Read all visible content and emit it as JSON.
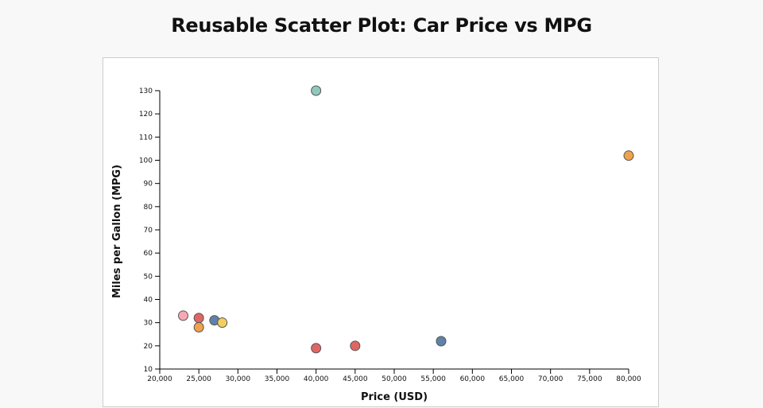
{
  "page": {
    "title": "Reusable Scatter Plot: Car Price vs MPG"
  },
  "chart_data": {
    "type": "scatter",
    "title": "Reusable Scatter Plot: Car Price vs MPG",
    "xlabel": "Price (USD)",
    "ylabel": "Miles per Gallon (MPG)",
    "xlim": [
      20000,
      80000
    ],
    "ylim": [
      10,
      130
    ],
    "x_ticks": [
      20000,
      25000,
      30000,
      35000,
      40000,
      45000,
      50000,
      55000,
      60000,
      65000,
      70000,
      75000,
      80000
    ],
    "x_tick_labels": [
      "20,000",
      "25,000",
      "30,000",
      "35,000",
      "40,000",
      "45,000",
      "50,000",
      "55,000",
      "60,000",
      "65,000",
      "70,000",
      "75,000",
      "80,000"
    ],
    "y_ticks": [
      10,
      20,
      30,
      40,
      50,
      60,
      70,
      80,
      90,
      100,
      110,
      120,
      130
    ],
    "y_tick_labels": [
      "10",
      "20",
      "30",
      "40",
      "50",
      "60",
      "70",
      "80",
      "90",
      "100",
      "110",
      "120",
      "130"
    ],
    "grid": false,
    "legend": "none",
    "points": [
      {
        "x": 40000,
        "y": 130,
        "color": "#8ec9bb"
      },
      {
        "x": 80000,
        "y": 102,
        "color": "#f0a24a"
      },
      {
        "x": 23000,
        "y": 33,
        "color": "#f7a8b4"
      },
      {
        "x": 25000,
        "y": 32,
        "color": "#e06666"
      },
      {
        "x": 27000,
        "y": 31,
        "color": "#5f82a9"
      },
      {
        "x": 28000,
        "y": 30,
        "color": "#f2cf5e"
      },
      {
        "x": 25000,
        "y": 28,
        "color": "#f0a24a"
      },
      {
        "x": 56000,
        "y": 22,
        "color": "#5f82a9"
      },
      {
        "x": 45000,
        "y": 20,
        "color": "#e06666"
      },
      {
        "x": 40000,
        "y": 19,
        "color": "#e06666"
      }
    ],
    "point_stroke": "#555555"
  }
}
